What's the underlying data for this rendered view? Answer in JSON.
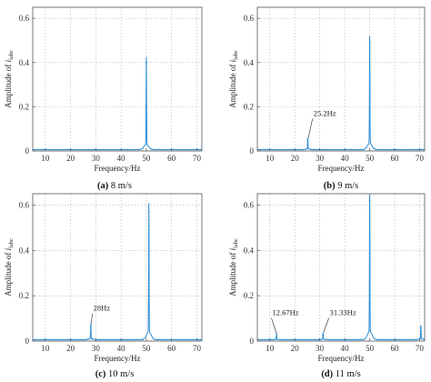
{
  "colors": {
    "line": "#2e8fd6",
    "frame": "#555555",
    "grid": "#b4b4b4"
  },
  "chart_data": [
    {
      "type": "line",
      "caption_id": "(a)",
      "caption_text": " 8 m/s",
      "xlabel": "Frequency/Hz",
      "ylabel_main": "Amplitude of ",
      "ylabel_italic": "i",
      "ylabel_sub": "labc",
      "xlim": [
        5,
        72
      ],
      "ylim": [
        0,
        0.65
      ],
      "xticks": [
        "10",
        "20",
        "30",
        "40",
        "50",
        "60",
        "70"
      ],
      "xtick_values": [
        10,
        20,
        30,
        40,
        50,
        60,
        70
      ],
      "yticks": [
        "0",
        "0.2",
        "0.4",
        "0.6"
      ],
      "ytick_values": [
        0,
        0.2,
        0.4,
        0.6
      ],
      "grid": true,
      "peaks": [
        {
          "x": 50,
          "y": 0.4
        }
      ],
      "annotations": []
    },
    {
      "type": "line",
      "caption_id": "(b)",
      "caption_text": " 9 m/s",
      "xlabel": "Frequency/Hz",
      "ylabel_main": "Amplitude of ",
      "ylabel_italic": "i",
      "ylabel_sub": "labc",
      "xlim": [
        5,
        72
      ],
      "ylim": [
        0,
        0.65
      ],
      "xticks": [
        "10",
        "20",
        "30",
        "40",
        "50",
        "60",
        "70"
      ],
      "xtick_values": [
        10,
        20,
        30,
        40,
        50,
        60,
        70
      ],
      "yticks": [
        "0",
        "0.2",
        "0.4",
        "0.6"
      ],
      "ytick_values": [
        0,
        0.2,
        0.4,
        0.6
      ],
      "grid": true,
      "peaks": [
        {
          "x": 25.2,
          "y": 0.05
        },
        {
          "x": 50,
          "y": 0.49
        }
      ],
      "annotations": [
        {
          "text": "25.2Hz",
          "x": 25.2,
          "y": 0.05,
          "label_x": 27.5,
          "label_y": 0.155
        }
      ]
    },
    {
      "type": "line",
      "caption_id": "(c)",
      "caption_text": " 10 m/s",
      "xlabel": "Frequency/Hz",
      "ylabel_main": "Amplitude of ",
      "ylabel_italic": "i",
      "ylabel_sub": "labc",
      "xlim": [
        5,
        72
      ],
      "ylim": [
        0,
        0.65
      ],
      "xticks": [
        "10",
        "20",
        "30",
        "40",
        "50",
        "60",
        "70"
      ],
      "xtick_values": [
        10,
        20,
        30,
        40,
        50,
        60,
        70
      ],
      "yticks": [
        "0",
        "0.2",
        "0.4",
        "0.6"
      ],
      "ytick_values": [
        0,
        0.2,
        0.4,
        0.6
      ],
      "grid": true,
      "peaks": [
        {
          "x": 28,
          "y": 0.07
        },
        {
          "x": 51,
          "y": 0.57
        }
      ],
      "annotations": [
        {
          "text": "28Hz",
          "x": 28,
          "y": 0.07,
          "label_x": 29,
          "label_y": 0.13
        }
      ]
    },
    {
      "type": "line",
      "caption_id": "(d)",
      "caption_text": " 11 m/s",
      "xlabel": "Frequency/Hz",
      "ylabel_main": "Amplitude of ",
      "ylabel_italic": "i",
      "ylabel_sub": "labc",
      "xlim": [
        5,
        72
      ],
      "ylim": [
        0,
        0.65
      ],
      "xticks": [
        "10",
        "20",
        "30",
        "40",
        "50",
        "60",
        "70"
      ],
      "xtick_values": [
        10,
        20,
        30,
        40,
        50,
        60,
        70
      ],
      "yticks": [
        "0",
        "0.2",
        "0.4",
        "0.6"
      ],
      "ytick_values": [
        0,
        0.2,
        0.4,
        0.6
      ],
      "grid": true,
      "peaks": [
        {
          "x": 12.67,
          "y": 0.02
        },
        {
          "x": 31.33,
          "y": 0.03
        },
        {
          "x": 50,
          "y": 0.62
        },
        {
          "x": 70.5,
          "y": 0.06
        }
      ],
      "annotations": [
        {
          "text": "12.67Hz",
          "x": 12.67,
          "y": 0.02,
          "label_x": 11,
          "label_y": 0.11
        },
        {
          "text": "31.33Hz",
          "x": 31.33,
          "y": 0.03,
          "label_x": 34,
          "label_y": 0.11
        }
      ]
    }
  ]
}
